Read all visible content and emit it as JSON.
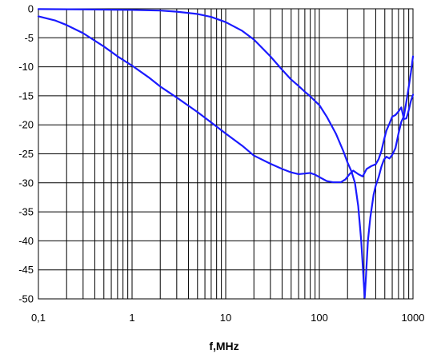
{
  "chart_data": {
    "type": "line",
    "title": "",
    "xlabel": "f,MHz",
    "ylabel": "",
    "x_scale": "log",
    "xlim": [
      0.1,
      1000
    ],
    "ylim": [
      -50,
      0
    ],
    "grid": true,
    "legend": "none",
    "x_tick_labels": [
      {
        "value": 0.1,
        "label": "0,1"
      },
      {
        "value": 1,
        "label": "1"
      },
      {
        "value": 10,
        "label": "10"
      },
      {
        "value": 100,
        "label": "100"
      },
      {
        "value": 1000,
        "label": "1000"
      }
    ],
    "y_tick_labels": [
      {
        "value": 0,
        "label": "0"
      },
      {
        "value": -5,
        "label": "-5"
      },
      {
        "value": -10,
        "label": "-10"
      },
      {
        "value": -15,
        "label": "-15"
      },
      {
        "value": -20,
        "label": "-20"
      },
      {
        "value": -25,
        "label": "-25"
      },
      {
        "value": -30,
        "label": "-30"
      },
      {
        "value": -35,
        "label": "-35"
      },
      {
        "value": -40,
        "label": "-40"
      },
      {
        "value": -45,
        "label": "-45"
      },
      {
        "value": -50,
        "label": "-50"
      }
    ],
    "series": [
      {
        "color": "#1a1aff",
        "points": [
          [
            0.1,
            -1.3
          ],
          [
            0.15,
            -2.0
          ],
          [
            0.2,
            -2.8
          ],
          [
            0.3,
            -4.2
          ],
          [
            0.5,
            -6.5
          ],
          [
            0.7,
            -8.2
          ],
          [
            1,
            -9.8
          ],
          [
            1.5,
            -11.8
          ],
          [
            2,
            -13.4
          ],
          [
            3,
            -15.3
          ],
          [
            5,
            -17.8
          ],
          [
            7,
            -19.6
          ],
          [
            10,
            -21.5
          ],
          [
            15,
            -23.6
          ],
          [
            20,
            -25.3
          ],
          [
            30,
            -26.7
          ],
          [
            40,
            -27.6
          ],
          [
            50,
            -28.2
          ],
          [
            60,
            -28.5
          ],
          [
            70,
            -28.4
          ],
          [
            80,
            -28.3
          ],
          [
            90,
            -28.6
          ],
          [
            100,
            -29.0
          ],
          [
            120,
            -29.7
          ],
          [
            140,
            -29.9
          ],
          [
            170,
            -29.9
          ],
          [
            190,
            -29.4
          ],
          [
            210,
            -28.5
          ],
          [
            230,
            -27.9
          ],
          [
            260,
            -28.5
          ],
          [
            290,
            -28.9
          ],
          [
            320,
            -27.6
          ],
          [
            360,
            -27.1
          ],
          [
            400,
            -26.8
          ],
          [
            430,
            -25.9
          ],
          [
            460,
            -24.5
          ],
          [
            490,
            -22.6
          ],
          [
            520,
            -21.0
          ],
          [
            560,
            -19.8
          ],
          [
            600,
            -18.6
          ],
          [
            650,
            -18.3
          ],
          [
            700,
            -17.7
          ],
          [
            750,
            -17.0
          ],
          [
            800,
            -19.0
          ],
          [
            850,
            -18.9
          ],
          [
            900,
            -17.5
          ],
          [
            950,
            -15.9
          ],
          [
            1000,
            -14.8
          ]
        ]
      },
      {
        "color": "#1a1aff",
        "points": [
          [
            0.1,
            -0.05
          ],
          [
            0.3,
            -0.1
          ],
          [
            1,
            -0.2
          ],
          [
            2,
            -0.3
          ],
          [
            3,
            -0.5
          ],
          [
            5,
            -0.9
          ],
          [
            7,
            -1.4
          ],
          [
            10,
            -2.3
          ],
          [
            15,
            -3.8
          ],
          [
            20,
            -5.3
          ],
          [
            30,
            -8.2
          ],
          [
            40,
            -10.5
          ],
          [
            50,
            -12.2
          ],
          [
            60,
            -13.3
          ],
          [
            70,
            -14.3
          ],
          [
            80,
            -15.1
          ],
          [
            90,
            -15.9
          ],
          [
            100,
            -16.6
          ],
          [
            120,
            -18.6
          ],
          [
            150,
            -21.5
          ],
          [
            180,
            -24.5
          ],
          [
            200,
            -26.5
          ],
          [
            220,
            -28.0
          ],
          [
            240,
            -30.0
          ],
          [
            260,
            -34.0
          ],
          [
            280,
            -40.0
          ],
          [
            295,
            -46.0
          ],
          [
            305,
            -49.8
          ],
          [
            315,
            -46.0
          ],
          [
            330,
            -40.0
          ],
          [
            350,
            -36.0
          ],
          [
            380,
            -32.0
          ],
          [
            400,
            -30.5
          ],
          [
            430,
            -29.0
          ],
          [
            460,
            -27.2
          ],
          [
            490,
            -26.0
          ],
          [
            520,
            -25.5
          ],
          [
            560,
            -25.8
          ],
          [
            600,
            -25.2
          ],
          [
            650,
            -24.0
          ],
          [
            700,
            -21.5
          ],
          [
            750,
            -19.5
          ],
          [
            800,
            -18.5
          ],
          [
            850,
            -16.0
          ],
          [
            900,
            -13.5
          ],
          [
            950,
            -11.0
          ],
          [
            1000,
            -8.2
          ]
        ]
      }
    ]
  }
}
